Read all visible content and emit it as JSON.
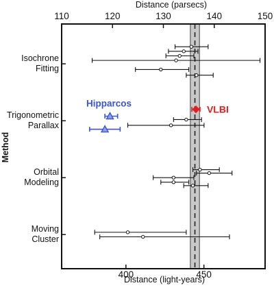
{
  "chart_data": {
    "type": "scatter",
    "title": "",
    "x_top": {
      "label": "Distance  (parsecs)",
      "range": [
        110,
        150
      ],
      "ticks": [
        110,
        120,
        130,
        140,
        150
      ]
    },
    "x_bottom": {
      "label": "Distance  (light-years)",
      "ticks": [
        400,
        450
      ]
    },
    "y_label": "Method",
    "categories": [
      {
        "label": "Isochrone\nFitting",
        "value": 1
      },
      {
        "label": "Trigonometric\nParallax",
        "value": 2
      },
      {
        "label": "Orbital\nModeling",
        "value": 3
      },
      {
        "label": "Moving\nCluster",
        "value": 4
      }
    ],
    "highlight_band": {
      "center": 136.2,
      "range": [
        135.3,
        137.1
      ]
    },
    "series": [
      {
        "method": "Isochrone Fitting",
        "points": [
          {
            "y": 0.7,
            "x": 135.5,
            "err": [
              132.3,
              138.8
            ]
          },
          {
            "y": 0.78,
            "x": 134.0,
            "err": [
              131.0,
              136.8
            ]
          },
          {
            "y": 0.86,
            "x": 133.2,
            "err": [
              130.5,
              136.0
            ]
          },
          {
            "y": 0.94,
            "x": 132.5,
            "err": [
              116.0,
              149.0
            ]
          },
          {
            "y": 1.1,
            "x": 129.5,
            "err": [
              124.5,
              135.0
            ]
          },
          {
            "y": 1.2,
            "x": 136.5,
            "err": [
              134.5,
              139.8
            ]
          }
        ]
      },
      {
        "method": "Trigonometric Parallax",
        "points": [
          {
            "y": 1.98,
            "x": 134.5,
            "err": [
              132.0,
              137.5
            ]
          },
          {
            "y": 2.08,
            "x": 131.5,
            "err": [
              123.0,
              138.0
            ]
          }
        ]
      },
      {
        "method": "Trigonometric Parallax",
        "name": "Hipparcos",
        "color": "#3b55c9",
        "marker": "triangle",
        "points": [
          {
            "y": 1.92,
            "x": 119.5,
            "err": [
              118.5,
              121.0
            ]
          },
          {
            "y": 2.15,
            "x": 118.5,
            "err": [
              115.5,
              121.5
            ]
          }
        ]
      },
      {
        "method": "Trigonometric Parallax",
        "name": "VLBI",
        "color": "#e02020",
        "marker": "diamond",
        "points": [
          {
            "y": 1.8,
            "x": 136.4,
            "err": [
              135.6,
              137.2
            ]
          }
        ]
      },
      {
        "method": "Orbital Modeling",
        "points": [
          {
            "y": 2.86,
            "x": 137.2,
            "err": [
              135.8,
              141.0
            ]
          },
          {
            "y": 2.92,
            "x": 139.0,
            "err": [
              136.5,
              143.5
            ]
          },
          {
            "y": 3.0,
            "x": 132.0,
            "err": [
              128.0,
              136.0
            ]
          },
          {
            "y": 3.08,
            "x": 132.0,
            "err": [
              129.5,
              135.0
            ]
          },
          {
            "y": 3.14,
            "x": 135.8,
            "err": [
              134.0,
              138.8
            ]
          }
        ]
      },
      {
        "method": "Moving Cluster",
        "points": [
          {
            "y": 3.96,
            "x": 123.0,
            "err": [
              116.5,
              134.5
            ]
          },
          {
            "y": 4.04,
            "x": 126.0,
            "err": [
              117.5,
              143.0
            ]
          }
        ]
      }
    ],
    "grid": false
  }
}
